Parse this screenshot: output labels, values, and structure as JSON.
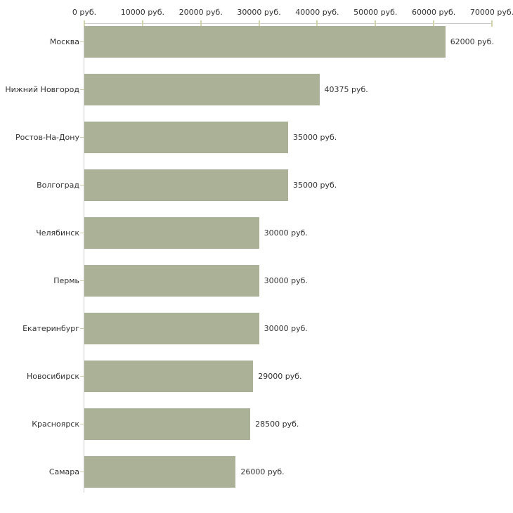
{
  "chart_data": {
    "type": "bar",
    "orientation": "horizontal",
    "title": "",
    "xlabel": "",
    "ylabel": "",
    "unit": "руб.",
    "xlim": [
      0,
      70000
    ],
    "x_tick_step": 10000,
    "x_tick_labels": [
      "0 руб.",
      "10000 руб.",
      "20000 руб.",
      "30000 руб.",
      "40000 руб.",
      "50000 руб.",
      "60000 руб.",
      "70000 руб."
    ],
    "grid": "off",
    "legend": "none",
    "categories": [
      "Москва",
      "Нижний Новгород",
      "Ростов-На-Дону",
      "Волгоград",
      "Челябинск",
      "Пермь",
      "Екатеринбург",
      "Новосибирск",
      "Красноярск",
      "Самара"
    ],
    "values": [
      62000,
      40375,
      35000,
      35000,
      30000,
      30000,
      30000,
      29000,
      28500,
      26000
    ],
    "value_labels": [
      "62000 руб.",
      "40375 руб.",
      "35000 руб.",
      "35000 руб.",
      "30000 руб.",
      "30000 руб.",
      "30000 руб.",
      "29000 руб.",
      "28500 руб.",
      "26000 руб."
    ],
    "colors": {
      "bar": "#abb196",
      "axis_line": "#cccccc",
      "tick_mark": "#d4d4aa",
      "text": "#333333",
      "background": "#ffffff"
    }
  }
}
